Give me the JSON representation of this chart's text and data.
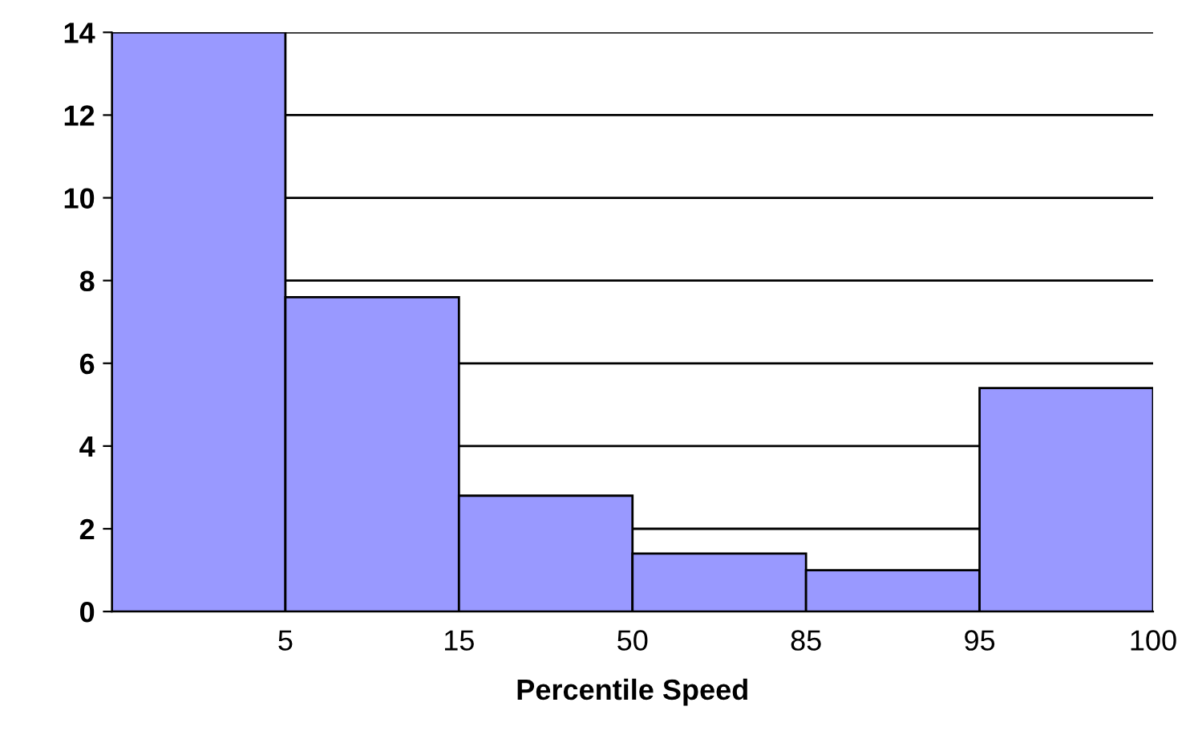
{
  "chart_data": {
    "type": "bar",
    "xlabel": "Percentile Speed",
    "categories": [
      "5",
      "15",
      "50",
      "85",
      "95",
      "100"
    ],
    "values": [
      14.0,
      7.6,
      2.8,
      1.4,
      1.0,
      5.4
    ],
    "color": "#9999ff",
    "ylim": [
      0,
      14
    ],
    "yticks": [
      0,
      2,
      4,
      6,
      8,
      10,
      12,
      14
    ],
    "grid": "y"
  }
}
